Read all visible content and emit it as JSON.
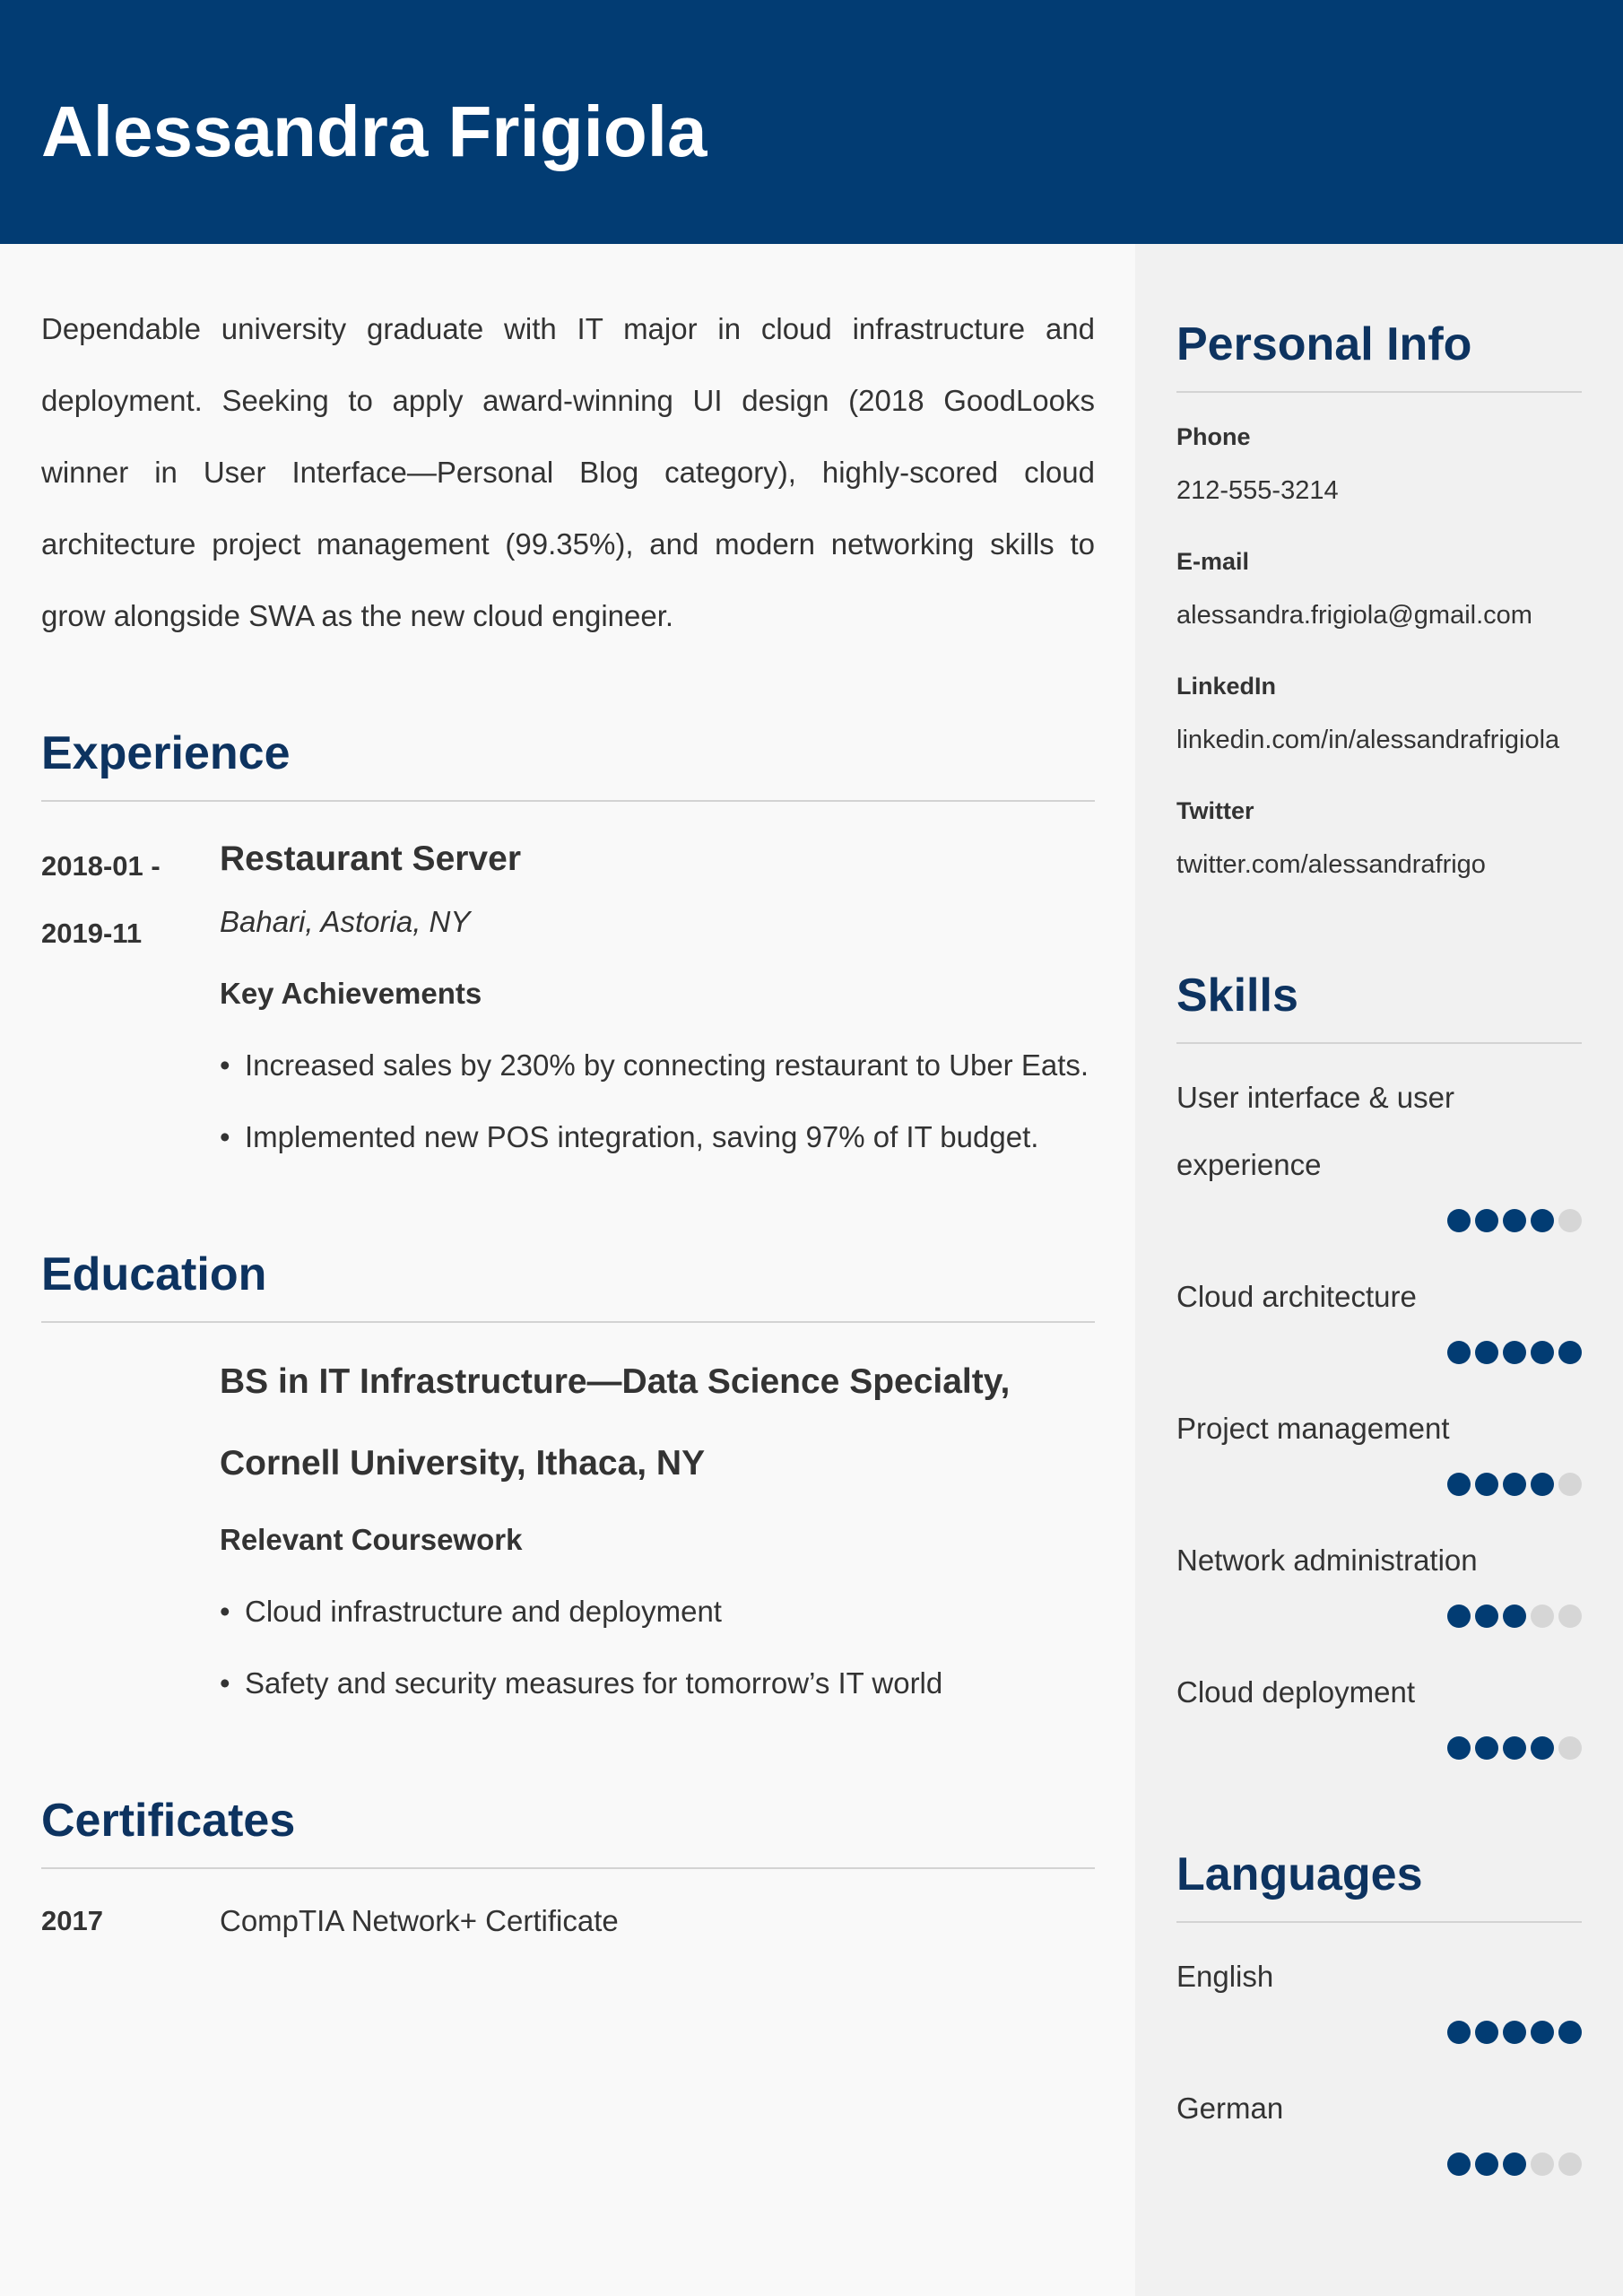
{
  "header": {
    "name": "Alessandra Frigiola"
  },
  "summary": "Dependable university graduate with IT major in cloud infrastructure and deployment. Seeking to apply award-winning UI design (2018 GoodLooks winner in User Interface—Personal Blog category), highly-scored cloud architecture project management (99.35%), and modern networking skills to grow alongside SWA as the new cloud engineer.",
  "experience": {
    "heading": "Experience",
    "items": [
      {
        "dates": "2018-01 - 2019-11",
        "title": "Restaurant Server",
        "location": "Bahari, Astoria, NY",
        "subheading": "Key Achievements",
        "bullets": [
          "Increased sales by 230% by connecting restaurant to Uber Eats.",
          "Implemented new POS integration, saving 97% of IT budget."
        ]
      }
    ]
  },
  "education": {
    "heading": "Education",
    "items": [
      {
        "degree": "BS in IT Infrastructure—Data Science Specialty, Cornell University, Ithaca, NY",
        "subheading": "Relevant Coursework",
        "bullets": [
          "Cloud infrastructure and deployment",
          "Safety and security measures for tomorrow’s IT world"
        ]
      }
    ]
  },
  "certificates": {
    "heading": "Certificates",
    "items": [
      {
        "year": "2017",
        "name": "CompTIA Network+ Certificate"
      }
    ]
  },
  "personal_info": {
    "heading": "Personal Info",
    "fields": [
      {
        "label": "Phone",
        "value": "212-555-3214"
      },
      {
        "label": "E-mail",
        "value": "alessandra.frigiola@gmail.com"
      },
      {
        "label": "LinkedIn",
        "value": "linkedin.com/in/alessandrafrigiola"
      },
      {
        "label": "Twitter",
        "value": "twitter.com/alessandrafrigo"
      }
    ]
  },
  "skills": {
    "heading": "Skills",
    "rating_scale": 5,
    "items": [
      {
        "name": "User interface & user experience",
        "level": 4
      },
      {
        "name": "Cloud architecture",
        "level": 5
      },
      {
        "name": "Project management",
        "level": 4
      },
      {
        "name": "Network administration",
        "level": 3
      },
      {
        "name": "Cloud deployment",
        "level": 4
      }
    ]
  },
  "languages": {
    "heading": "Languages",
    "rating_scale": 5,
    "items": [
      {
        "name": "English",
        "level": 5
      },
      {
        "name": "German",
        "level": 3
      }
    ]
  }
}
